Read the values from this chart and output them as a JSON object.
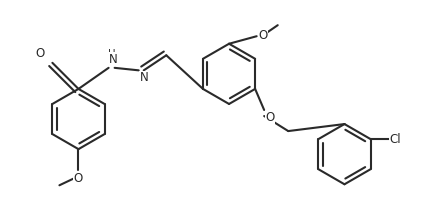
{
  "background_color": "#ffffff",
  "line_color": "#2a2a2a",
  "line_width": 1.5,
  "font_size": 8.5,
  "figsize": [
    4.33,
    2.23
  ],
  "dpi": 100,
  "xlim": [
    0.0,
    8.6
  ],
  "ylim": [
    0.0,
    4.4
  ]
}
